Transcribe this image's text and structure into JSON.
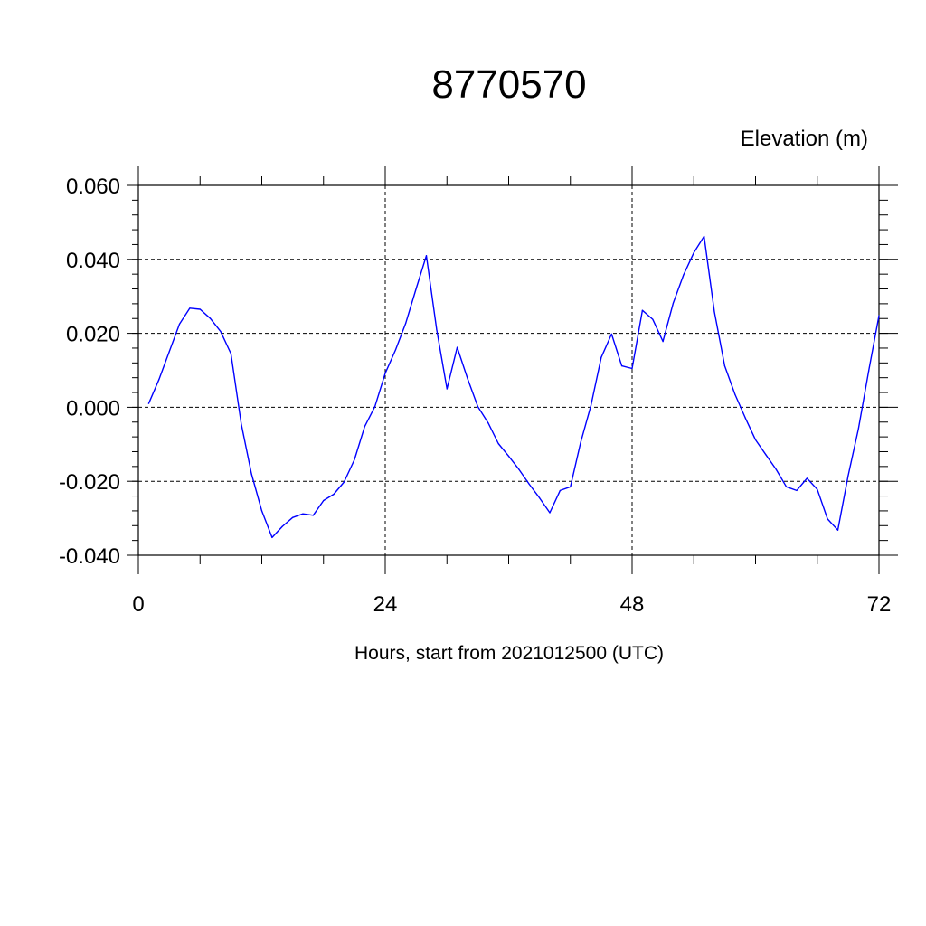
{
  "chart_data": {
    "type": "line",
    "title": "8770570",
    "ylabel": "Elevation (m)",
    "xlabel": "Hours, start from 2021012500 (UTC)",
    "xlim": [
      0,
      72
    ],
    "ylim": [
      -0.04,
      0.06
    ],
    "x_ticks": [
      0,
      24,
      48,
      72
    ],
    "x_tick_labels": [
      "0",
      "24",
      "48",
      "72"
    ],
    "y_ticks": [
      -0.04,
      -0.02,
      0.0,
      0.02,
      0.04,
      0.06
    ],
    "y_tick_labels": [
      "-0.040",
      "-0.020",
      "0.000",
      "0.020",
      "0.040",
      "0.060"
    ],
    "grid": true,
    "series": [
      {
        "color": "#0000ff",
        "x": [
          1,
          2,
          3,
          4,
          5,
          6,
          7,
          8,
          9,
          10,
          11,
          12,
          13,
          14,
          15,
          16,
          17,
          18,
          19,
          20,
          21,
          22,
          23,
          24,
          25,
          26,
          27,
          28,
          29,
          30,
          31,
          32,
          33,
          34,
          35,
          36,
          37,
          38,
          39,
          40,
          41,
          42,
          43,
          44,
          45,
          46,
          47,
          48,
          49,
          50,
          51,
          52,
          53,
          54,
          55,
          56,
          57,
          58,
          59,
          60,
          61,
          62,
          63,
          64,
          65,
          66,
          67,
          68,
          69,
          70,
          71,
          72
        ],
        "y": [
          0.001,
          0.0075,
          0.015,
          0.0225,
          0.0268,
          0.0265,
          0.024,
          0.0205,
          0.0145,
          -0.0045,
          -0.018,
          -0.028,
          -0.0352,
          -0.0322,
          -0.0298,
          -0.0288,
          -0.0292,
          -0.0252,
          -0.0235,
          -0.0202,
          -0.0142,
          -0.0052,
          0.0002,
          0.0092,
          0.0155,
          0.0228,
          0.032,
          0.041,
          0.021,
          0.005,
          0.0162,
          0.0078,
          0.0002,
          -0.0042,
          -0.0098,
          -0.0132,
          -0.0168,
          -0.0208,
          -0.0245,
          -0.0285,
          -0.0225,
          -0.0215,
          -0.0095,
          0.0005,
          0.0135,
          0.0198,
          0.0112,
          0.0105,
          0.0262,
          0.0238,
          0.0178,
          0.0282,
          0.0358,
          0.0418,
          0.0462,
          0.0258,
          0.0112,
          0.0035,
          -0.0028,
          -0.0088,
          -0.0128,
          -0.0168,
          -0.0215,
          -0.0225,
          -0.0192,
          -0.0222,
          -0.0302,
          -0.0332,
          -0.0185,
          -0.0058,
          0.0098,
          0.0248
        ]
      }
    ]
  }
}
